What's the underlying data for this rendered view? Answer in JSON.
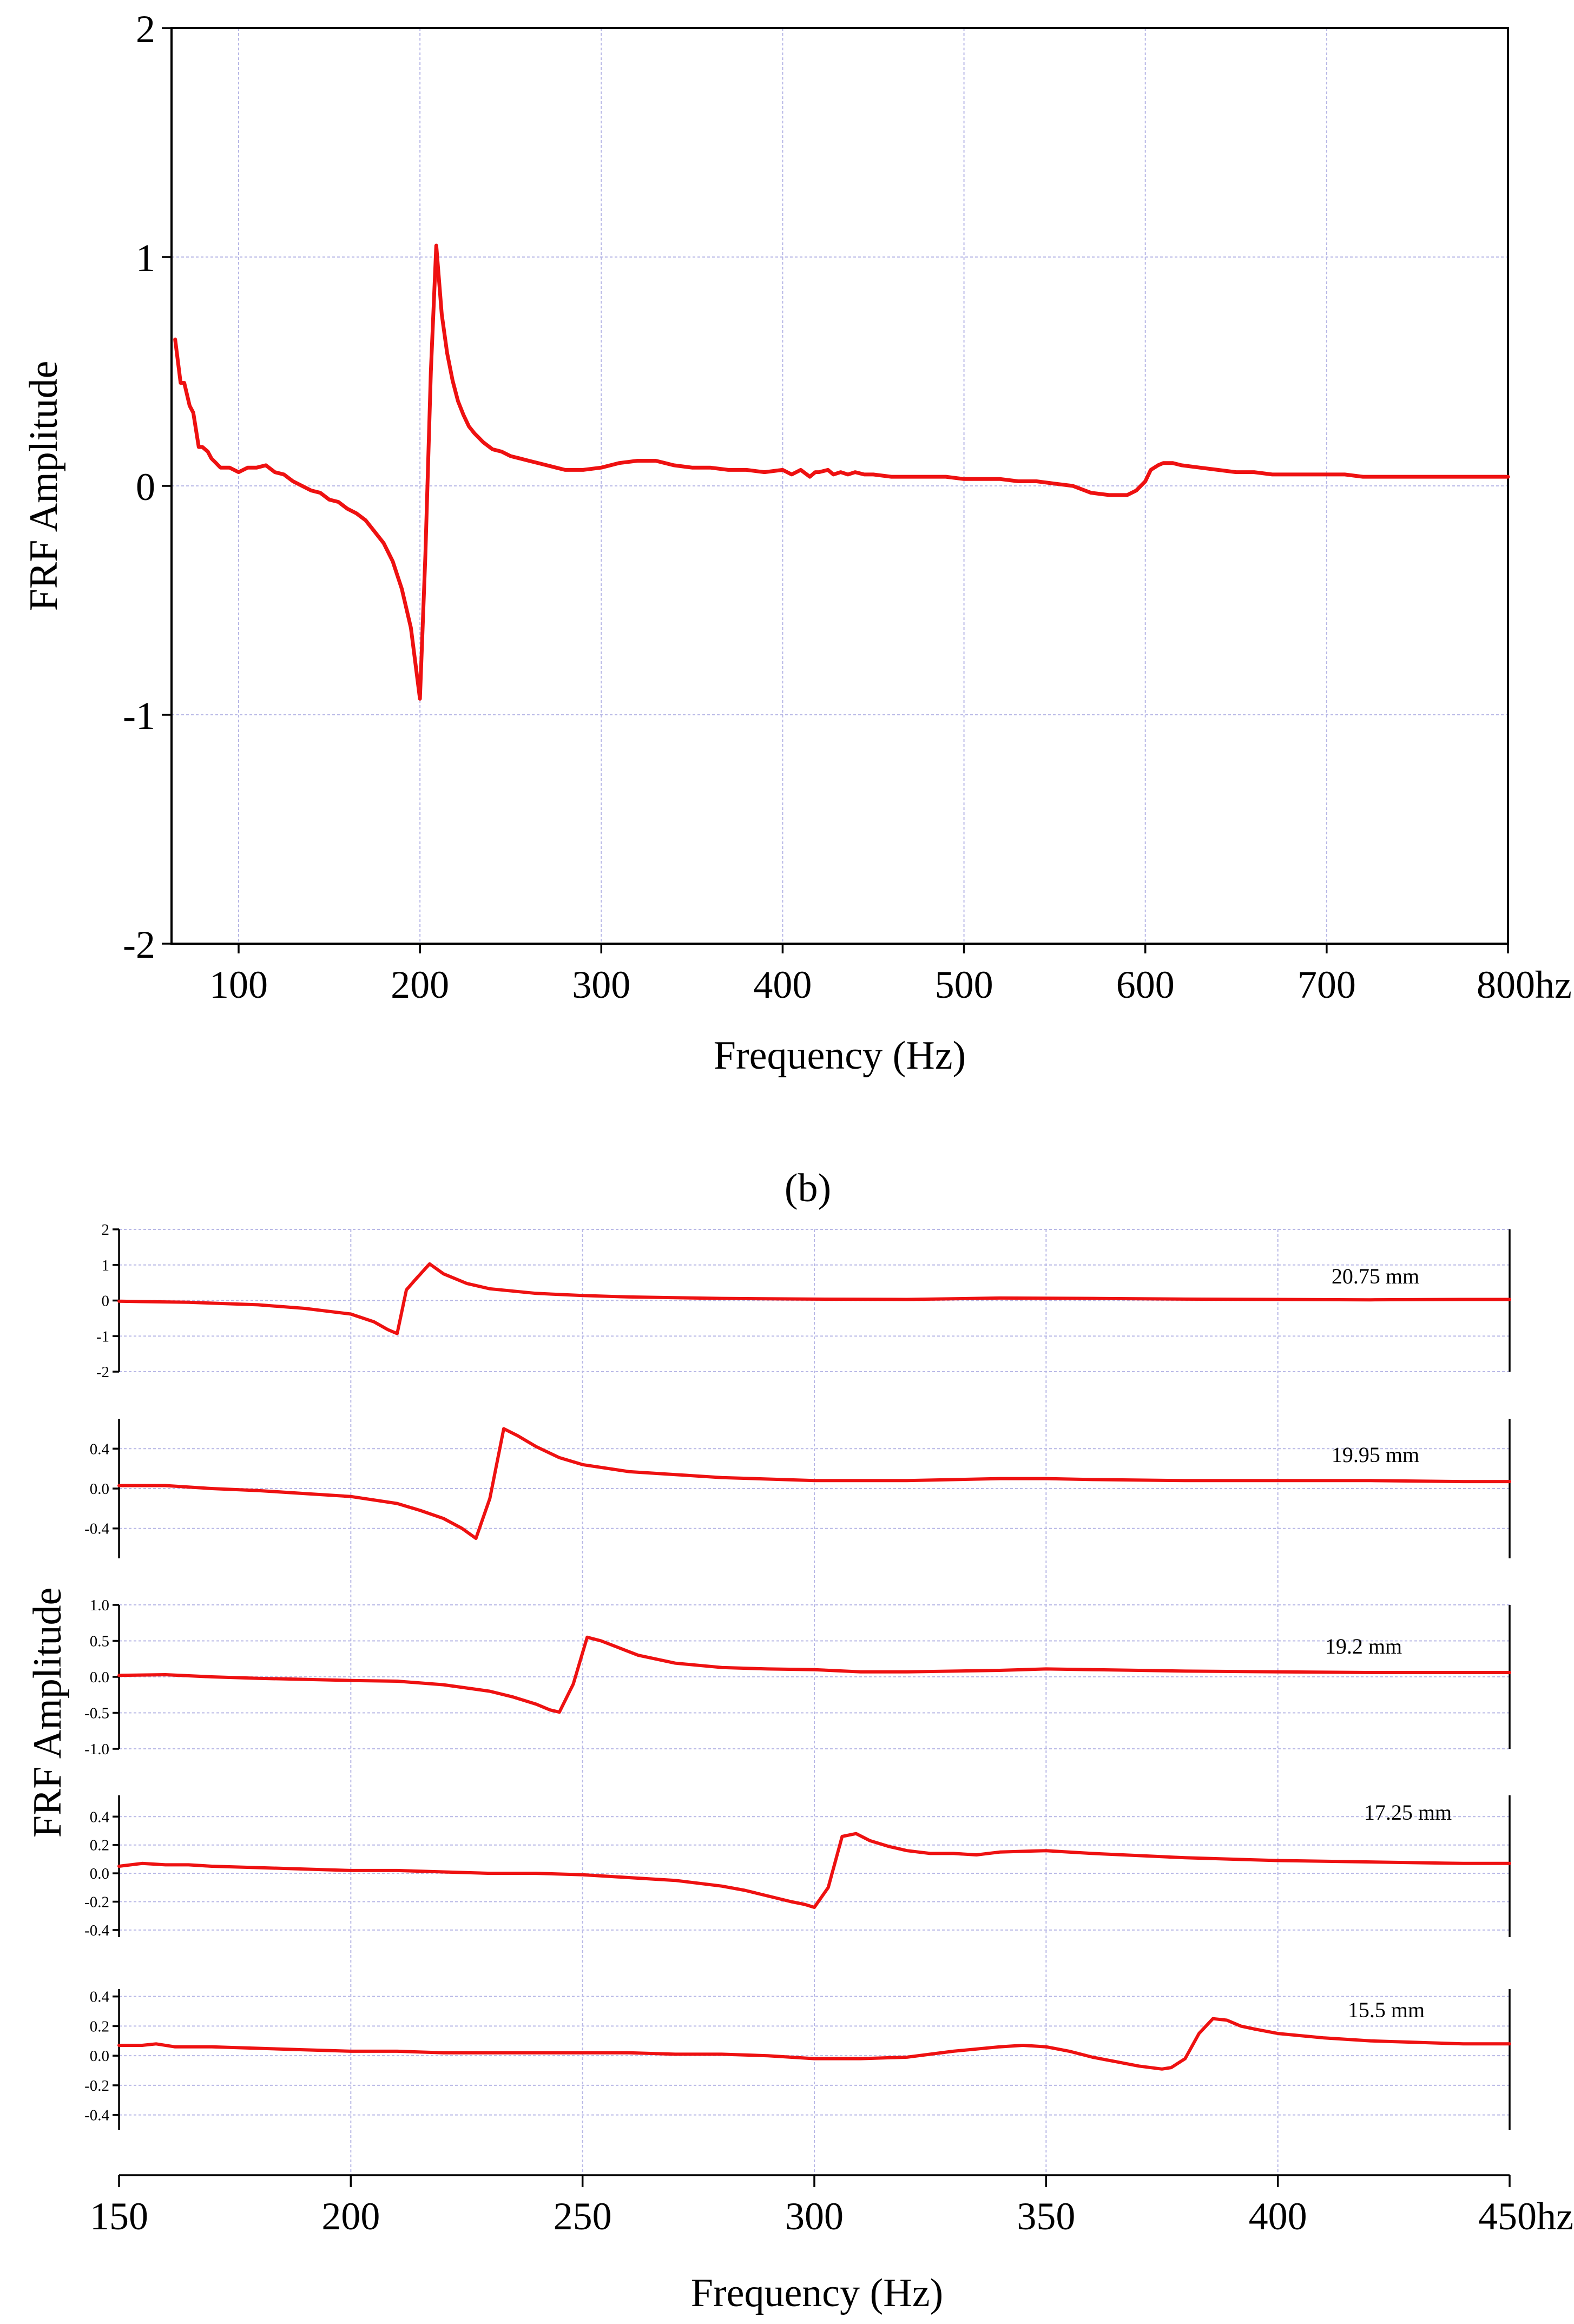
{
  "chart_data": [
    {
      "type": "line",
      "panel": "a",
      "xlabel": "Frequency (Hz)",
      "ylabel": "FRF Amplitude",
      "xlim": [
        63,
        800
      ],
      "ylim": [
        -2,
        2
      ],
      "x_ticks": [
        100,
        200,
        300,
        400,
        500,
        600,
        700,
        800
      ],
      "x_tick_labels": [
        "100",
        "200",
        "300",
        "400",
        "500",
        "600",
        "700",
        "800hz"
      ],
      "y_ticks": [
        -2,
        -1,
        0,
        1,
        2
      ],
      "y_tick_labels": [
        "-2",
        "-1",
        "0",
        "1",
        "2"
      ],
      "grid": true,
      "series": [
        {
          "name": "FRF",
          "color": "#ee1111",
          "x": [
            65,
            68,
            70,
            73,
            75,
            78,
            80,
            83,
            85,
            90,
            95,
            100,
            105,
            110,
            115,
            120,
            125,
            130,
            135,
            140,
            145,
            150,
            155,
            160,
            165,
            170,
            175,
            180,
            185,
            190,
            195,
            200,
            203,
            206,
            209,
            212,
            215,
            218,
            221,
            224,
            227,
            230,
            235,
            240,
            245,
            250,
            255,
            260,
            270,
            275,
            280,
            290,
            300,
            310,
            320,
            330,
            335,
            340,
            350,
            360,
            370,
            380,
            390,
            400,
            405,
            410,
            415,
            418,
            420,
            425,
            428,
            432,
            436,
            440,
            445,
            450,
            460,
            470,
            480,
            490,
            500,
            510,
            520,
            530,
            540,
            550,
            560,
            570,
            580,
            590,
            595,
            600,
            603,
            607,
            610,
            615,
            620,
            630,
            640,
            650,
            660,
            670,
            680,
            690,
            700,
            710,
            720,
            730,
            740,
            750,
            760,
            770,
            780,
            790,
            800
          ],
          "y": [
            0.64,
            0.45,
            0.45,
            0.35,
            0.32,
            0.17,
            0.17,
            0.15,
            0.12,
            0.08,
            0.08,
            0.06,
            0.08,
            0.08,
            0.09,
            0.06,
            0.05,
            0.02,
            0.0,
            -0.02,
            -0.03,
            -0.06,
            -0.07,
            -0.1,
            -0.12,
            -0.15,
            -0.2,
            -0.25,
            -0.33,
            -0.45,
            -0.62,
            -0.93,
            -0.3,
            0.5,
            1.05,
            0.75,
            0.58,
            0.46,
            0.37,
            0.31,
            0.26,
            0.23,
            0.19,
            0.16,
            0.15,
            0.13,
            0.12,
            0.11,
            0.09,
            0.08,
            0.07,
            0.07,
            0.08,
            0.1,
            0.11,
            0.11,
            0.1,
            0.09,
            0.08,
            0.08,
            0.07,
            0.07,
            0.06,
            0.07,
            0.05,
            0.07,
            0.04,
            0.06,
            0.06,
            0.07,
            0.05,
            0.06,
            0.05,
            0.06,
            0.05,
            0.05,
            0.04,
            0.04,
            0.04,
            0.04,
            0.03,
            0.03,
            0.03,
            0.02,
            0.02,
            0.01,
            0.0,
            -0.03,
            -0.04,
            -0.04,
            -0.02,
            0.02,
            0.07,
            0.09,
            0.1,
            0.1,
            0.09,
            0.08,
            0.07,
            0.06,
            0.06,
            0.05,
            0.05,
            0.05,
            0.05,
            0.05,
            0.04,
            0.04,
            0.04,
            0.04,
            0.04,
            0.04,
            0.04,
            0.04,
            0.04
          ]
        }
      ]
    },
    {
      "type": "line",
      "panel": "b",
      "caption": "(b)",
      "xlabel": "Frequency (Hz)",
      "ylabel": "FRF Amplitude",
      "xlim": [
        150,
        450
      ],
      "x_ticks": [
        150,
        200,
        250,
        300,
        350,
        400,
        450
      ],
      "x_tick_labels": [
        "150",
        "200",
        "250",
        "300",
        "350",
        "400",
        "450hz"
      ],
      "grid": true,
      "subplots": [
        {
          "label": "20.75 mm",
          "ylim": [
            -2,
            2
          ],
          "y_ticks": [
            -2,
            -1,
            0,
            1,
            2
          ],
          "y_tick_labels": [
            "-2",
            "-1",
            "0",
            "1",
            "2"
          ],
          "x": [
            150,
            165,
            180,
            190,
            200,
            205,
            208,
            210,
            212,
            214,
            217,
            220,
            225,
            230,
            240,
            250,
            260,
            280,
            300,
            320,
            340,
            360,
            380,
            400,
            420,
            440,
            450
          ],
          "y": [
            -0.02,
            -0.05,
            -0.12,
            -0.22,
            -0.38,
            -0.6,
            -0.82,
            -0.93,
            0.3,
            0.6,
            1.03,
            0.75,
            0.48,
            0.33,
            0.2,
            0.14,
            0.1,
            0.06,
            0.04,
            0.03,
            0.07,
            0.06,
            0.04,
            0.03,
            0.02,
            0.03,
            0.03
          ]
        },
        {
          "label": "19.95 mm",
          "ylim": [
            -0.7,
            0.7
          ],
          "y_ticks": [
            -0.4,
            0.0,
            0.4
          ],
          "y_tick_labels": [
            "-0.4",
            "0.0",
            "0.4"
          ],
          "x": [
            150,
            160,
            170,
            180,
            190,
            200,
            210,
            215,
            220,
            224,
            227,
            230,
            233,
            236,
            240,
            245,
            250,
            260,
            270,
            280,
            300,
            320,
            340,
            350,
            360,
            380,
            400,
            420,
            440,
            450
          ],
          "y": [
            0.03,
            0.03,
            0.0,
            -0.02,
            -0.05,
            -0.08,
            -0.15,
            -0.22,
            -0.3,
            -0.4,
            -0.5,
            -0.1,
            0.6,
            0.53,
            0.42,
            0.31,
            0.24,
            0.17,
            0.14,
            0.11,
            0.08,
            0.08,
            0.1,
            0.1,
            0.09,
            0.08,
            0.08,
            0.08,
            0.07,
            0.07
          ]
        },
        {
          "label": "19.2 mm",
          "ylim": [
            -1.0,
            1.0
          ],
          "y_ticks": [
            -1.0,
            -0.5,
            0.0,
            0.5,
            1.0
          ],
          "y_tick_labels": [
            "-1.0",
            "-0.5",
            "0.0",
            "0.5",
            "1.0"
          ],
          "x": [
            150,
            160,
            170,
            180,
            200,
            210,
            220,
            230,
            235,
            240,
            243,
            245,
            248,
            251,
            254,
            258,
            262,
            270,
            280,
            290,
            300,
            310,
            320,
            340,
            350,
            360,
            380,
            400,
            420,
            440,
            450
          ],
          "y": [
            0.02,
            0.03,
            0.0,
            -0.02,
            -0.05,
            -0.06,
            -0.11,
            -0.2,
            -0.28,
            -0.38,
            -0.46,
            -0.49,
            -0.1,
            0.55,
            0.5,
            0.4,
            0.3,
            0.19,
            0.13,
            0.11,
            0.1,
            0.07,
            0.07,
            0.09,
            0.11,
            0.1,
            0.08,
            0.07,
            0.06,
            0.06,
            0.06
          ]
        },
        {
          "label": "17.25 mm",
          "ylim": [
            -0.45,
            0.55
          ],
          "y_ticks": [
            -0.4,
            -0.2,
            0.0,
            0.2,
            0.4
          ],
          "y_tick_labels": [
            "-0.4",
            "-0.2",
            "0.0",
            "0.2",
            "0.4"
          ],
          "x": [
            150,
            155,
            160,
            165,
            170,
            180,
            190,
            200,
            210,
            220,
            230,
            240,
            250,
            260,
            270,
            280,
            285,
            290,
            295,
            298,
            300,
            303,
            306,
            309,
            312,
            316,
            320,
            325,
            330,
            335,
            340,
            350,
            360,
            380,
            400,
            420,
            440,
            450
          ],
          "y": [
            0.05,
            0.07,
            0.06,
            0.06,
            0.05,
            0.04,
            0.03,
            0.02,
            0.02,
            0.01,
            0.0,
            0.0,
            -0.01,
            -0.03,
            -0.05,
            -0.09,
            -0.12,
            -0.16,
            -0.2,
            -0.22,
            -0.24,
            -0.1,
            0.26,
            0.28,
            0.23,
            0.19,
            0.16,
            0.14,
            0.14,
            0.13,
            0.15,
            0.16,
            0.14,
            0.11,
            0.09,
            0.08,
            0.07,
            0.07
          ]
        },
        {
          "label": "15.5 mm",
          "ylim": [
            -0.5,
            0.45
          ],
          "y_ticks": [
            -0.4,
            -0.2,
            0.0,
            0.2,
            0.4
          ],
          "y_tick_labels": [
            "-0.4",
            "-0.2",
            "0.0",
            "0.2",
            "0.4"
          ],
          "x": [
            150,
            155,
            158,
            162,
            165,
            170,
            180,
            190,
            200,
            210,
            220,
            230,
            240,
            250,
            260,
            270,
            280,
            290,
            300,
            310,
            320,
            330,
            340,
            345,
            350,
            355,
            360,
            365,
            370,
            375,
            377,
            380,
            383,
            386,
            389,
            392,
            395,
            400,
            410,
            420,
            430,
            440,
            450
          ],
          "y": [
            0.07,
            0.07,
            0.08,
            0.06,
            0.06,
            0.06,
            0.05,
            0.04,
            0.03,
            0.03,
            0.02,
            0.02,
            0.02,
            0.02,
            0.02,
            0.01,
            0.01,
            0.0,
            -0.02,
            -0.02,
            -0.01,
            0.03,
            0.06,
            0.07,
            0.06,
            0.03,
            -0.01,
            -0.04,
            -0.07,
            -0.09,
            -0.08,
            -0.02,
            0.15,
            0.25,
            0.24,
            0.2,
            0.18,
            0.15,
            0.12,
            0.1,
            0.09,
            0.08,
            0.08
          ]
        }
      ]
    }
  ]
}
